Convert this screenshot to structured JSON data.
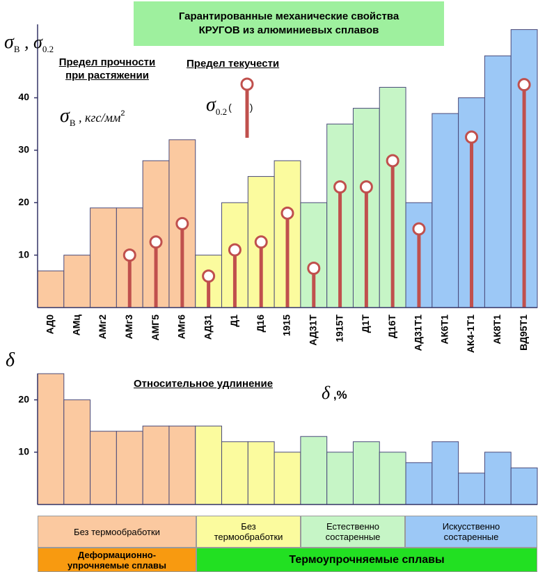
{
  "title": "Гарантированные механические свойства\nКРУГОВ из алюминиевых сплавов",
  "chart_data": [
    {
      "type": "bar",
      "categories": [
        "АД0",
        "АМц",
        "АМг2",
        "АМг3",
        "АМГ5",
        "АМг6",
        "АД31",
        "Д1",
        "Д16",
        "1915",
        "АД31Т",
        "1915Т",
        "Д1Т",
        "Д16Т",
        "АД31Т1",
        "АК6Т1",
        "АК4-1Т1",
        "АК8Т1",
        "ВД95Т1"
      ],
      "ylim": [
        0,
        54
      ],
      "yticks": [
        10,
        20,
        30,
        40
      ],
      "y_label": [
        "σ",
        "B",
        " , σ",
        "0.2"
      ],
      "series": [
        {
          "name": "Предел прочности\nпри растяжении",
          "unit": [
            "σ",
            "B",
            " , кгс/мм",
            "2"
          ],
          "type": "bar",
          "colors": [
            "#fbc9a0",
            "#fbc9a0",
            "#fbc9a0",
            "#fbc9a0",
            "#fbc9a0",
            "#fbc9a0",
            "#fbfb9e",
            "#fbfb9e",
            "#fbfb9e",
            "#fbfb9e",
            "#c6f5c6",
            "#c6f5c6",
            "#c6f5c6",
            "#c6f5c6",
            "#9cc8f6",
            "#9cc8f6",
            "#9cc8f6",
            "#9cc8f6",
            "#9cc8f6"
          ],
          "values": [
            7,
            10,
            19,
            19,
            28,
            32,
            10,
            20,
            25,
            28,
            20,
            35,
            38,
            42,
            20,
            37,
            40,
            48,
            53
          ]
        },
        {
          "name": "Предел текучести",
          "unit": [
            "σ",
            "0.2",
            "(",
            ")"
          ],
          "type": "lollipop",
          "color": "#c0504d",
          "values": [
            null,
            null,
            null,
            10,
            12.5,
            16,
            6,
            11,
            12.5,
            18,
            7.5,
            23,
            23,
            28,
            15,
            null,
            32.5,
            null,
            42.5
          ]
        }
      ]
    },
    {
      "type": "bar",
      "title": "Относительное удлинение",
      "title_unit": [
        "δ",
        " ,%"
      ],
      "y_label": "δ",
      "ylim": [
        0,
        25
      ],
      "yticks": [
        10,
        20
      ],
      "colors": [
        "#fbc9a0",
        "#fbc9a0",
        "#fbc9a0",
        "#fbc9a0",
        "#fbc9a0",
        "#fbc9a0",
        "#fbfb9e",
        "#fbfb9e",
        "#fbfb9e",
        "#fbfb9e",
        "#c6f5c6",
        "#c6f5c6",
        "#c6f5c6",
        "#c6f5c6",
        "#9cc8f6",
        "#9cc8f6",
        "#9cc8f6",
        "#9cc8f6",
        "#9cc8f6"
      ],
      "values": [
        25,
        20,
        14,
        14,
        15,
        15,
        15,
        12,
        12,
        10,
        13,
        10,
        12,
        10,
        8,
        12,
        6,
        10,
        7
      ]
    }
  ],
  "groups": {
    "treatment": [
      "Без термообработки",
      "Без\nтермообработки",
      "Естественно\nсостаренные",
      "Искусственно\nсостаренные"
    ],
    "class": [
      "Деформационно-\nупрочняемые сплавы",
      "Термоупрочняемые сплавы"
    ]
  }
}
